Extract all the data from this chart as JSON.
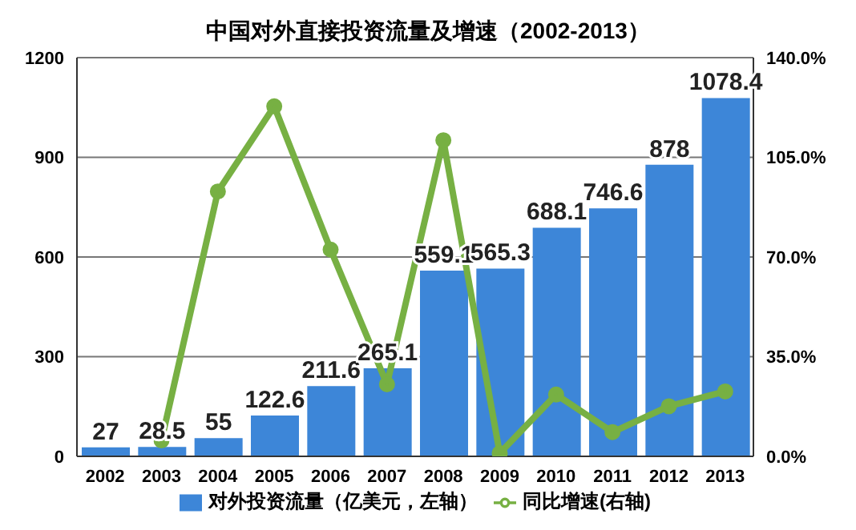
{
  "chart_data": {
    "type": "bar",
    "title": "中国对外直接投资流量及增速（2002-2013）",
    "categories": [
      "2002",
      "2003",
      "2004",
      "2005",
      "2006",
      "2007",
      "2008",
      "2009",
      "2010",
      "2011",
      "2012",
      "2013"
    ],
    "series": [
      {
        "name": "对外投资流量（亿美元，左轴）",
        "color": "#3d86d8",
        "values": [
          27,
          28.5,
          55,
          122.6,
          211.6,
          265.1,
          559.1,
          565.3,
          688.1,
          746.6,
          878,
          1078.4
        ],
        "value_labels": [
          "27",
          "28.5",
          "55",
          "122.6",
          "211.6",
          "265.1",
          "559.1",
          "565.3",
          "688.1",
          "746.6",
          "878",
          "1078.4"
        ]
      },
      {
        "name": "同比增速(右轴)",
        "type": "line",
        "axis": "y2",
        "color": "#77b043",
        "marker": "circle",
        "values": [
          null,
          5.6,
          93,
          122.9,
          72.6,
          25.3,
          111,
          1.1,
          21.7,
          8.5,
          17.6,
          22.8
        ]
      }
    ],
    "ylim": [
      0,
      1200
    ],
    "yticks": [
      0,
      300,
      600,
      900,
      1200
    ],
    "y2lim": [
      0,
      140
    ],
    "y2ticks": [
      {
        "value": 0,
        "label": "0.0%"
      },
      {
        "value": 35,
        "label": "35.0%"
      },
      {
        "value": 70,
        "label": "70.0%"
      },
      {
        "value": 105,
        "label": "105.0%"
      },
      {
        "value": 140,
        "label": "140.0%"
      }
    ],
    "grid": "y",
    "legend": "bottom"
  }
}
